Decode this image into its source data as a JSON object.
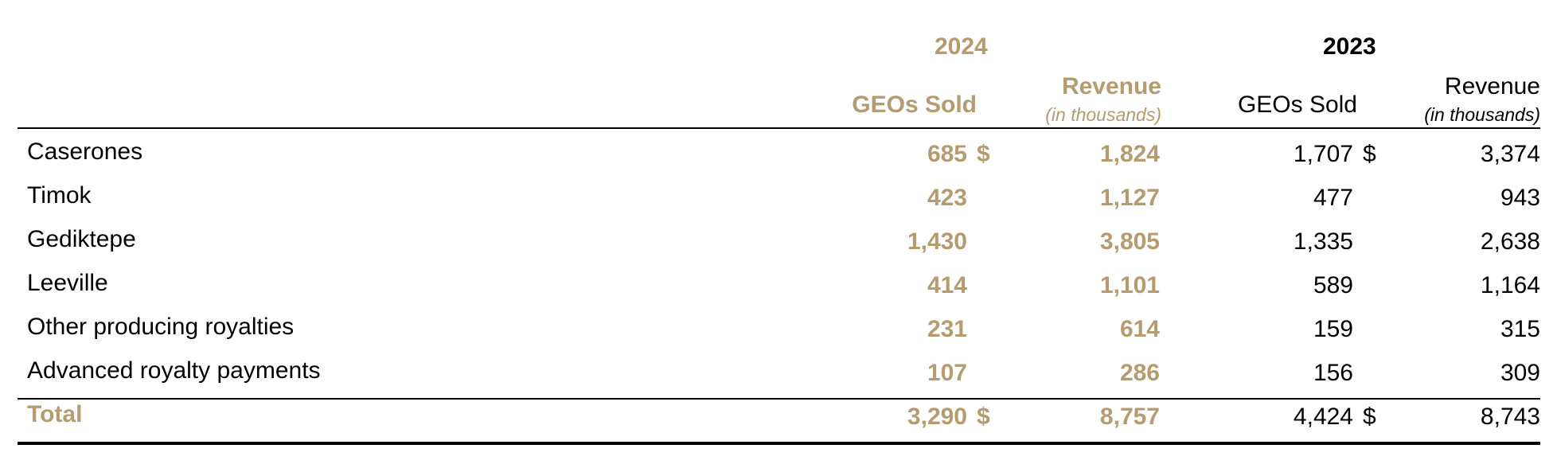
{
  "table": {
    "years": {
      "current": "2024",
      "prior": "2023"
    },
    "headers": {
      "geos_sold": "GEOs Sold",
      "revenue": "Revenue",
      "revenue_unit": "(in thousands)"
    },
    "currency_symbol": "$",
    "rows": [
      {
        "name": "Caserones",
        "geos_2024": "685",
        "rev_2024": "1,824",
        "geos_2023": "1,707",
        "rev_2023": "3,374",
        "show_currency": true
      },
      {
        "name": "Timok",
        "geos_2024": "423",
        "rev_2024": "1,127",
        "geos_2023": "477",
        "rev_2023": "943",
        "show_currency": false
      },
      {
        "name": "Gediktepe",
        "geos_2024": "1,430",
        "rev_2024": "3,805",
        "geos_2023": "1,335",
        "rev_2023": "2,638",
        "show_currency": false
      },
      {
        "name": "Leeville",
        "geos_2024": "414",
        "rev_2024": "1,101",
        "geos_2023": "589",
        "rev_2023": "1,164",
        "show_currency": false
      },
      {
        "name": "Other producing royalties",
        "geos_2024": "231",
        "rev_2024": "614",
        "geos_2023": "159",
        "rev_2023": "315",
        "show_currency": false
      },
      {
        "name": "Advanced royalty payments",
        "geos_2024": "107",
        "rev_2024": "286",
        "geos_2023": "156",
        "rev_2023": "309",
        "show_currency": false
      }
    ],
    "total": {
      "name": "Total",
      "geos_2024": "3,290",
      "rev_2024": "8,757",
      "geos_2023": "4,424",
      "rev_2023": "8,743"
    }
  },
  "colors": {
    "accent_gold": "#b69b6f",
    "text": "#000000"
  }
}
